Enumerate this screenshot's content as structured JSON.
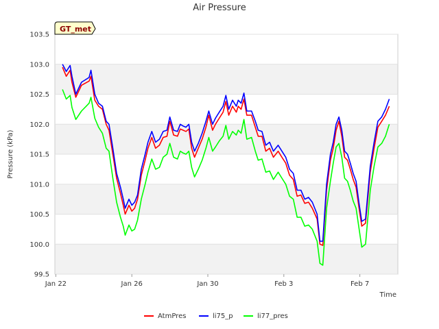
{
  "chart_data": {
    "type": "line",
    "title": "Air Pressure",
    "xlabel": "Time",
    "ylabel": "Pressure (kPa)",
    "badge": "GT_met",
    "x_unit": "days since Jan 22",
    "xlim": [
      -0.05,
      18.0
    ],
    "ylim": [
      99.5,
      103.5
    ],
    "x_ticks": [
      {
        "value": 0,
        "label": "Jan 22"
      },
      {
        "value": 4,
        "label": "Jan 26"
      },
      {
        "value": 8,
        "label": "Jan 30"
      },
      {
        "value": 12,
        "label": "Feb 3"
      },
      {
        "value": 16,
        "label": "Feb 7"
      }
    ],
    "y_ticks": [
      {
        "value": 99.5,
        "label": "99.5"
      },
      {
        "value": 100.0,
        "label": "100.0"
      },
      {
        "value": 100.5,
        "label": "100.5"
      },
      {
        "value": 101.0,
        "label": "101.0"
      },
      {
        "value": 101.5,
        "label": "101.5"
      },
      {
        "value": 102.0,
        "label": "102.0"
      },
      {
        "value": 102.5,
        "label": "102.5"
      },
      {
        "value": 103.0,
        "label": "103.0"
      },
      {
        "value": 103.5,
        "label": "103.5"
      }
    ],
    "bands": [
      [
        99.5,
        100.0
      ],
      [
        100.5,
        101.0
      ],
      [
        101.5,
        102.0
      ],
      [
        102.5,
        103.0
      ]
    ],
    "series": [
      {
        "name": "AtmPres",
        "color": "#ff0000",
        "points": [
          [
            0.35,
            102.95
          ],
          [
            0.55,
            102.8
          ],
          [
            0.75,
            102.9
          ],
          [
            0.85,
            102.7
          ],
          [
            1.05,
            102.45
          ],
          [
            1.35,
            102.65
          ],
          [
            1.75,
            102.72
          ],
          [
            1.85,
            102.8
          ],
          [
            2.05,
            102.4
          ],
          [
            2.25,
            102.3
          ],
          [
            2.45,
            102.25
          ],
          [
            2.65,
            102.0
          ],
          [
            2.8,
            101.9
          ],
          [
            3.0,
            101.5
          ],
          [
            3.2,
            101.1
          ],
          [
            3.4,
            100.85
          ],
          [
            3.55,
            100.65
          ],
          [
            3.65,
            100.5
          ],
          [
            3.85,
            100.65
          ],
          [
            4.0,
            100.55
          ],
          [
            4.15,
            100.6
          ],
          [
            4.3,
            100.75
          ],
          [
            4.5,
            101.15
          ],
          [
            4.7,
            101.4
          ],
          [
            4.85,
            101.6
          ],
          [
            5.05,
            101.78
          ],
          [
            5.25,
            101.6
          ],
          [
            5.45,
            101.65
          ],
          [
            5.65,
            101.78
          ],
          [
            5.85,
            101.8
          ],
          [
            6.0,
            102.05
          ],
          [
            6.2,
            101.82
          ],
          [
            6.4,
            101.8
          ],
          [
            6.55,
            101.92
          ],
          [
            6.7,
            101.9
          ],
          [
            6.85,
            101.88
          ],
          [
            7.0,
            101.92
          ],
          [
            7.15,
            101.6
          ],
          [
            7.3,
            101.45
          ],
          [
            7.5,
            101.6
          ],
          [
            7.7,
            101.75
          ],
          [
            7.9,
            101.95
          ],
          [
            8.05,
            102.15
          ],
          [
            8.25,
            101.9
          ],
          [
            8.4,
            102.0
          ],
          [
            8.6,
            102.1
          ],
          [
            8.8,
            102.2
          ],
          [
            8.95,
            102.38
          ],
          [
            9.1,
            102.15
          ],
          [
            9.3,
            102.3
          ],
          [
            9.5,
            102.2
          ],
          [
            9.6,
            102.3
          ],
          [
            9.75,
            102.25
          ],
          [
            9.9,
            102.42
          ],
          [
            10.05,
            102.15
          ],
          [
            10.3,
            102.15
          ],
          [
            10.5,
            101.95
          ],
          [
            10.65,
            101.8
          ],
          [
            10.85,
            101.8
          ],
          [
            11.05,
            101.55
          ],
          [
            11.25,
            101.6
          ],
          [
            11.45,
            101.45
          ],
          [
            11.7,
            101.55
          ],
          [
            11.9,
            101.45
          ],
          [
            12.1,
            101.35
          ],
          [
            12.3,
            101.15
          ],
          [
            12.5,
            101.08
          ],
          [
            12.7,
            100.8
          ],
          [
            12.9,
            100.82
          ],
          [
            13.1,
            100.68
          ],
          [
            13.3,
            100.7
          ],
          [
            13.5,
            100.6
          ],
          [
            13.75,
            100.42
          ],
          [
            13.9,
            100.0
          ],
          [
            14.05,
            99.98
          ],
          [
            14.25,
            100.9
          ],
          [
            14.45,
            101.4
          ],
          [
            14.6,
            101.6
          ],
          [
            14.75,
            101.9
          ],
          [
            14.9,
            102.05
          ],
          [
            15.05,
            101.8
          ],
          [
            15.2,
            101.45
          ],
          [
            15.35,
            101.4
          ],
          [
            15.5,
            101.25
          ],
          [
            15.65,
            101.08
          ],
          [
            15.8,
            100.95
          ],
          [
            15.95,
            100.62
          ],
          [
            16.1,
            100.3
          ],
          [
            16.3,
            100.35
          ],
          [
            16.55,
            101.2
          ],
          [
            16.75,
            101.6
          ],
          [
            16.95,
            101.95
          ],
          [
            17.15,
            102.05
          ],
          [
            17.35,
            102.15
          ],
          [
            17.55,
            102.3
          ]
        ]
      },
      {
        "name": "li75_p",
        "color": "#0000ff",
        "points": [
          [
            0.35,
            103.0
          ],
          [
            0.55,
            102.88
          ],
          [
            0.75,
            102.98
          ],
          [
            0.85,
            102.8
          ],
          [
            1.05,
            102.5
          ],
          [
            1.35,
            102.7
          ],
          [
            1.75,
            102.78
          ],
          [
            1.85,
            102.9
          ],
          [
            2.05,
            102.5
          ],
          [
            2.25,
            102.35
          ],
          [
            2.45,
            102.3
          ],
          [
            2.65,
            102.05
          ],
          [
            2.8,
            102.0
          ],
          [
            3.0,
            101.6
          ],
          [
            3.2,
            101.18
          ],
          [
            3.4,
            100.95
          ],
          [
            3.55,
            100.75
          ],
          [
            3.65,
            100.6
          ],
          [
            3.85,
            100.75
          ],
          [
            4.0,
            100.65
          ],
          [
            4.15,
            100.7
          ],
          [
            4.3,
            100.82
          ],
          [
            4.5,
            101.25
          ],
          [
            4.7,
            101.5
          ],
          [
            4.85,
            101.7
          ],
          [
            5.05,
            101.88
          ],
          [
            5.25,
            101.7
          ],
          [
            5.45,
            101.75
          ],
          [
            5.65,
            101.88
          ],
          [
            5.85,
            101.9
          ],
          [
            6.0,
            102.12
          ],
          [
            6.2,
            101.9
          ],
          [
            6.4,
            101.88
          ],
          [
            6.55,
            102.0
          ],
          [
            6.7,
            101.97
          ],
          [
            6.85,
            101.95
          ],
          [
            7.0,
            102.0
          ],
          [
            7.15,
            101.7
          ],
          [
            7.3,
            101.55
          ],
          [
            7.5,
            101.68
          ],
          [
            7.7,
            101.85
          ],
          [
            7.9,
            102.05
          ],
          [
            8.05,
            102.22
          ],
          [
            8.25,
            102.0
          ],
          [
            8.4,
            102.1
          ],
          [
            8.6,
            102.2
          ],
          [
            8.8,
            102.3
          ],
          [
            8.95,
            102.48
          ],
          [
            9.1,
            102.25
          ],
          [
            9.3,
            102.4
          ],
          [
            9.5,
            102.3
          ],
          [
            9.6,
            102.4
          ],
          [
            9.75,
            102.35
          ],
          [
            9.9,
            102.52
          ],
          [
            10.05,
            102.22
          ],
          [
            10.3,
            102.22
          ],
          [
            10.5,
            102.05
          ],
          [
            10.65,
            101.9
          ],
          [
            10.85,
            101.88
          ],
          [
            11.05,
            101.65
          ],
          [
            11.25,
            101.7
          ],
          [
            11.45,
            101.55
          ],
          [
            11.7,
            101.65
          ],
          [
            11.9,
            101.55
          ],
          [
            12.1,
            101.45
          ],
          [
            12.3,
            101.25
          ],
          [
            12.5,
            101.18
          ],
          [
            12.7,
            100.9
          ],
          [
            12.9,
            100.9
          ],
          [
            13.1,
            100.75
          ],
          [
            13.3,
            100.78
          ],
          [
            13.5,
            100.7
          ],
          [
            13.75,
            100.5
          ],
          [
            13.9,
            100.05
          ],
          [
            14.05,
            100.05
          ],
          [
            14.25,
            101.0
          ],
          [
            14.45,
            101.5
          ],
          [
            14.6,
            101.7
          ],
          [
            14.75,
            102.0
          ],
          [
            14.9,
            102.12
          ],
          [
            15.05,
            101.9
          ],
          [
            15.2,
            101.55
          ],
          [
            15.35,
            101.5
          ],
          [
            15.5,
            101.35
          ],
          [
            15.65,
            101.18
          ],
          [
            15.8,
            101.05
          ],
          [
            15.95,
            100.7
          ],
          [
            16.1,
            100.38
          ],
          [
            16.3,
            100.42
          ],
          [
            16.55,
            101.3
          ],
          [
            16.75,
            101.7
          ],
          [
            16.95,
            102.05
          ],
          [
            17.15,
            102.12
          ],
          [
            17.35,
            102.25
          ],
          [
            17.55,
            102.42
          ]
        ]
      },
      {
        "name": "li77_pres",
        "color": "#00ff00",
        "points": [
          [
            0.35,
            102.58
          ],
          [
            0.55,
            102.42
          ],
          [
            0.75,
            102.48
          ],
          [
            0.85,
            102.28
          ],
          [
            1.05,
            102.08
          ],
          [
            1.35,
            102.22
          ],
          [
            1.75,
            102.35
          ],
          [
            1.85,
            102.45
          ],
          [
            2.05,
            102.1
          ],
          [
            2.25,
            101.95
          ],
          [
            2.45,
            101.85
          ],
          [
            2.65,
            101.6
          ],
          [
            2.8,
            101.55
          ],
          [
            3.0,
            101.1
          ],
          [
            3.2,
            100.7
          ],
          [
            3.4,
            100.45
          ],
          [
            3.55,
            100.3
          ],
          [
            3.65,
            100.15
          ],
          [
            3.85,
            100.32
          ],
          [
            4.0,
            100.22
          ],
          [
            4.15,
            100.25
          ],
          [
            4.3,
            100.4
          ],
          [
            4.5,
            100.75
          ],
          [
            4.7,
            101.0
          ],
          [
            4.85,
            101.2
          ],
          [
            5.05,
            101.42
          ],
          [
            5.25,
            101.25
          ],
          [
            5.45,
            101.28
          ],
          [
            5.65,
            101.45
          ],
          [
            5.85,
            101.5
          ],
          [
            6.0,
            101.68
          ],
          [
            6.2,
            101.45
          ],
          [
            6.4,
            101.42
          ],
          [
            6.55,
            101.55
          ],
          [
            6.7,
            101.52
          ],
          [
            6.85,
            101.5
          ],
          [
            7.0,
            101.55
          ],
          [
            7.15,
            101.28
          ],
          [
            7.3,
            101.12
          ],
          [
            7.5,
            101.25
          ],
          [
            7.7,
            101.4
          ],
          [
            7.9,
            101.6
          ],
          [
            8.05,
            101.78
          ],
          [
            8.25,
            101.55
          ],
          [
            8.4,
            101.62
          ],
          [
            8.6,
            101.72
          ],
          [
            8.8,
            101.8
          ],
          [
            8.95,
            101.98
          ],
          [
            9.1,
            101.75
          ],
          [
            9.3,
            101.88
          ],
          [
            9.5,
            101.82
          ],
          [
            9.6,
            101.9
          ],
          [
            9.75,
            101.85
          ],
          [
            9.9,
            102.08
          ],
          [
            10.05,
            101.75
          ],
          [
            10.3,
            101.78
          ],
          [
            10.5,
            101.55
          ],
          [
            10.65,
            101.4
          ],
          [
            10.85,
            101.42
          ],
          [
            11.05,
            101.2
          ],
          [
            11.25,
            101.22
          ],
          [
            11.45,
            101.08
          ],
          [
            11.7,
            101.2
          ],
          [
            11.9,
            101.1
          ],
          [
            12.1,
            101.0
          ],
          [
            12.3,
            100.8
          ],
          [
            12.5,
            100.75
          ],
          [
            12.7,
            100.45
          ],
          [
            12.9,
            100.45
          ],
          [
            13.1,
            100.3
          ],
          [
            13.3,
            100.32
          ],
          [
            13.5,
            100.25
          ],
          [
            13.75,
            100.05
          ],
          [
            13.9,
            99.68
          ],
          [
            14.05,
            99.65
          ],
          [
            14.25,
            100.6
          ],
          [
            14.45,
            101.05
          ],
          [
            14.6,
            101.35
          ],
          [
            14.75,
            101.62
          ],
          [
            14.9,
            101.68
          ],
          [
            15.05,
            101.45
          ],
          [
            15.2,
            101.1
          ],
          [
            15.35,
            101.05
          ],
          [
            15.5,
            100.9
          ],
          [
            15.65,
            100.72
          ],
          [
            15.8,
            100.6
          ],
          [
            15.95,
            100.28
          ],
          [
            16.1,
            99.95
          ],
          [
            16.3,
            100.0
          ],
          [
            16.55,
            100.9
          ],
          [
            16.75,
            101.3
          ],
          [
            16.95,
            101.62
          ],
          [
            17.15,
            101.68
          ],
          [
            17.35,
            101.8
          ],
          [
            17.55,
            102.0
          ]
        ]
      }
    ]
  }
}
